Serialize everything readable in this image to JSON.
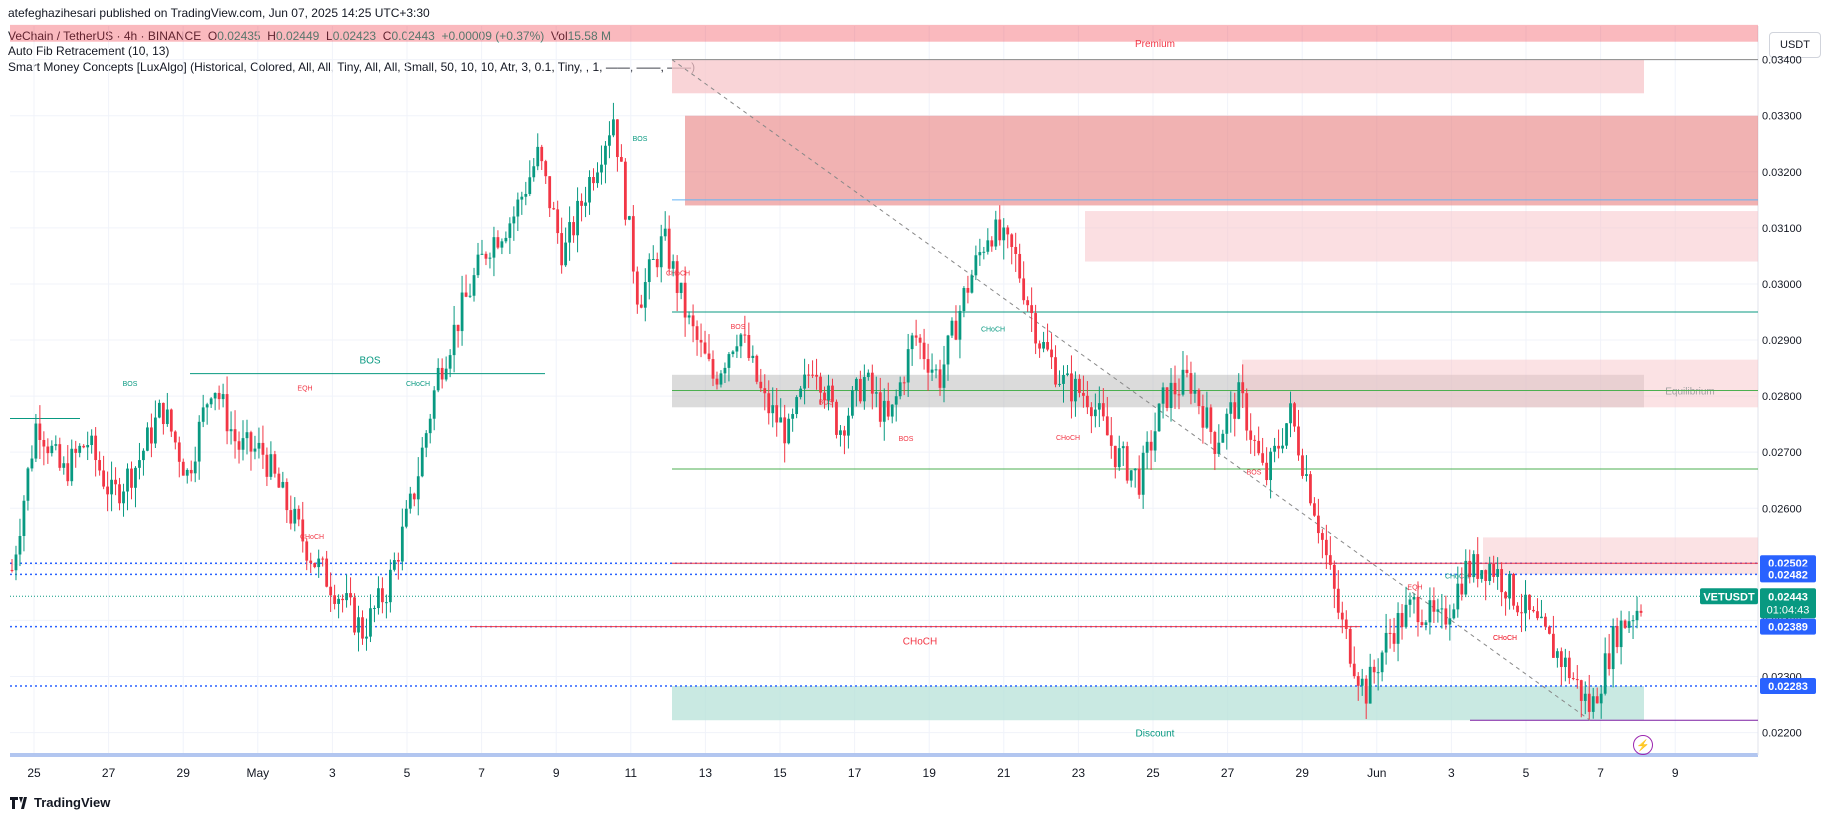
{
  "meta": {
    "publisher": "atefeghazihesari published on TradingView.com, Jun 07, 2025 14:25 UTC+3:30"
  },
  "header": {
    "symbol": "VeChain / TetherUS · 4h · BINANCE",
    "open_key": "O",
    "open": "0.02435",
    "high_key": "H",
    "high": "0.02449",
    "low_key": "L",
    "low": "0.02423",
    "close_key": "C",
    "close": "0.02443",
    "change": "+0.00009 (+0.37%)",
    "vol_key": "Vol",
    "vol": "15.58 M",
    "indicator1": "Auto Fib Retracement (10, 13)",
    "indicator2": "Smart Money Concepts [LuxAlgo] (Historical, Colored, All, All, Tiny, All, All, Small, 50, 10, 10, Atr, 3, 0.1, Tiny, , 1, ——, ——, ——)"
  },
  "currency_button": "USDT",
  "brand": "TradingView",
  "colors": {
    "up": "#089981",
    "down": "#f23645",
    "grid": "#f0f3fa",
    "accent": "#2962ff",
    "premium_zone": "#f7c5ca",
    "discount_zone": "#b2dfd6"
  },
  "chart_data": {
    "type": "candlestick",
    "symbol": "VETUSDT",
    "interval": "4h",
    "ylim": [
      0.0216,
      0.0346
    ],
    "y_ticks": [
      "0.03400",
      "0.03300",
      "0.03200",
      "0.03100",
      "0.03000",
      "0.02900",
      "0.02800",
      "0.02700",
      "0.02600",
      "0.02500",
      "0.02400",
      "0.02300",
      "0.02200"
    ],
    "x_ticks": [
      "25",
      "27",
      "29",
      "May",
      "3",
      "5",
      "7",
      "9",
      "11",
      "13",
      "15",
      "17",
      "19",
      "21",
      "23",
      "25",
      "27",
      "29",
      "Jun",
      "3",
      "5",
      "7",
      "9"
    ],
    "price_labels": [
      "0.02502",
      "0.02482",
      "0.02389",
      "0.02283"
    ],
    "last_price": {
      "label": "VETUSDT",
      "price": "0.02443",
      "countdown": "01:04:43"
    },
    "zone_labels": {
      "premium": "Premium",
      "equilibrium": "Equilibrium",
      "discount": "Discount"
    },
    "structure_labels": [
      {
        "text": "BOS",
        "color": "up"
      },
      {
        "text": "CHoCH",
        "color": "up"
      },
      {
        "text": "BOS",
        "color": "up"
      },
      {
        "text": "EQH",
        "color": "down"
      },
      {
        "text": "CHoCH",
        "color": "down"
      },
      {
        "text": "BOS",
        "color": "up"
      },
      {
        "text": "CHoCH",
        "color": "down"
      },
      {
        "text": "BOS",
        "color": "down"
      },
      {
        "text": "BOS",
        "color": "down"
      },
      {
        "text": "BOS",
        "color": "down"
      },
      {
        "text": "CHoCH",
        "color": "up"
      },
      {
        "text": "CHoCH",
        "color": "down"
      },
      {
        "text": "BOS",
        "color": "down"
      },
      {
        "text": "CHoCH",
        "color": "down"
      },
      {
        "text": "EQH",
        "color": "down"
      },
      {
        "text": "CHoCH",
        "color": "up"
      },
      {
        "text": "CHoCH",
        "color": "down"
      }
    ],
    "price_path": [
      0.0249,
      0.0276,
      0.0266,
      0.0272,
      0.0262,
      0.0268,
      0.0278,
      0.0266,
      0.0283,
      0.0271,
      0.027,
      0.026,
      0.0251,
      0.0245,
      0.0238,
      0.0246,
      0.0262,
      0.0284,
      0.0296,
      0.0307,
      0.0312,
      0.0323,
      0.0305,
      0.0318,
      0.033,
      0.0297,
      0.0308,
      0.0293,
      0.0283,
      0.0292,
      0.0279,
      0.0273,
      0.0287,
      0.0274,
      0.0283,
      0.0275,
      0.0291,
      0.0283,
      0.0298,
      0.031,
      0.0305,
      0.029,
      0.0282,
      0.028,
      0.027,
      0.0265,
      0.028,
      0.0283,
      0.0272,
      0.028,
      0.0265,
      0.0277,
      0.026,
      0.024,
      0.0227,
      0.0238,
      0.0243,
      0.0239,
      0.0249,
      0.025,
      0.0244,
      0.0238,
      0.0232,
      0.0224,
      0.0238,
      0.0243
    ]
  }
}
